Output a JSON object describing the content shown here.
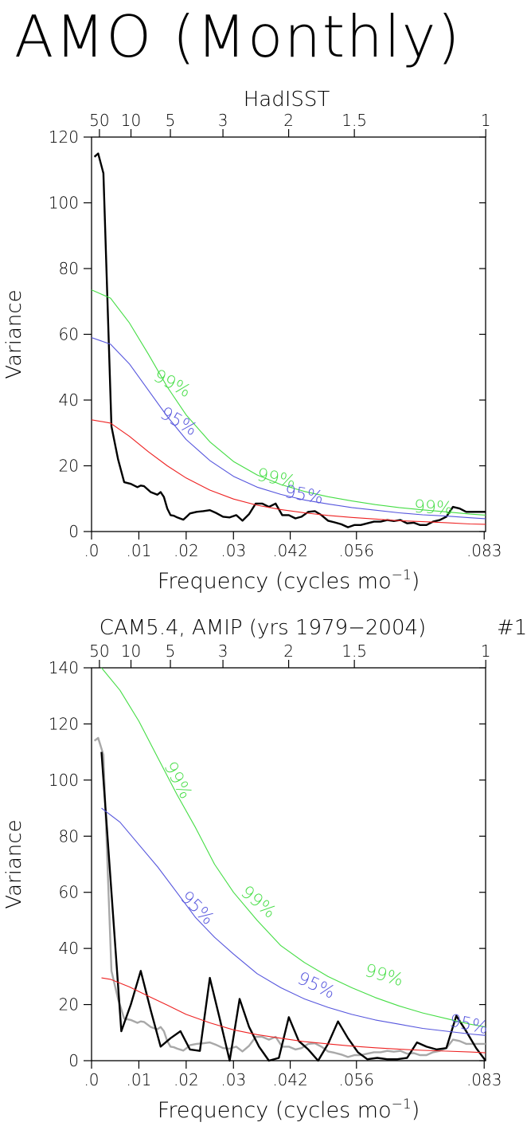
{
  "page": {
    "title": "AMO (Monthly)"
  },
  "colors": {
    "observed": "#000000",
    "observed_overlay": "#a8a8a8",
    "red_noise": "#ee2222",
    "conf_95": "#5555dd",
    "conf_99": "#44dd44",
    "axes": "#000000"
  },
  "chart_data": [
    {
      "type": "line",
      "title": "HadISST",
      "run_number": "",
      "xlabel": "Frequency (cycles mo",
      "xlabel_sup": "−1",
      "xlabel_close": ")",
      "ylabel": "Variance",
      "xlim": [
        0,
        0.0833
      ],
      "ylim": [
        0,
        120
      ],
      "x_ticks": [
        0,
        0.01,
        0.02,
        0.03,
        0.042,
        0.056,
        0.083
      ],
      "x_tick_labels": [
        ".0",
        ".01",
        ".02",
        ".03",
        ".042",
        ".056",
        ".083"
      ],
      "y_ticks": [
        0,
        20,
        40,
        60,
        80,
        100,
        120
      ],
      "y_tick_labels": [
        "0",
        "20",
        "40",
        "60",
        "80",
        "100",
        "120"
      ],
      "period_ticks": [
        50,
        10,
        5,
        3,
        2,
        1.5,
        1
      ],
      "period_tick_labels": [
        "50",
        "10",
        "5",
        "3",
        "2",
        "1.5",
        "1"
      ],
      "series": [
        {
          "role": "spectrum",
          "color": "#000000",
          "x": [
            0.0006,
            0.0014,
            0.0025,
            0.0042,
            0.0056,
            0.0069,
            0.0083,
            0.0097,
            0.0104,
            0.0111,
            0.0125,
            0.0139,
            0.0146,
            0.0153,
            0.016,
            0.0167,
            0.0174,
            0.0181,
            0.0194,
            0.0201,
            0.0208,
            0.0222,
            0.0236,
            0.025,
            0.0264,
            0.0278,
            0.0292,
            0.0306,
            0.0319,
            0.0333,
            0.0347,
            0.0361,
            0.0375,
            0.0389,
            0.0403,
            0.0417,
            0.0431,
            0.0444,
            0.0458,
            0.0472,
            0.0486,
            0.05,
            0.0514,
            0.0528,
            0.0542,
            0.0556,
            0.0569,
            0.0583,
            0.0597,
            0.0611,
            0.0625,
            0.0639,
            0.0653,
            0.0667,
            0.0681,
            0.0694,
            0.0708,
            0.0722,
            0.0736,
            0.075,
            0.0764,
            0.0778,
            0.0792,
            0.0806,
            0.0819,
            0.0833
          ],
          "y": [
            114,
            115,
            109,
            32,
            22,
            15,
            14.5,
            13.5,
            14,
            13.8,
            12,
            11.2,
            12,
            10.5,
            7,
            5,
            4.8,
            4.3,
            3.6,
            4.5,
            5.5,
            6,
            6.2,
            6.5,
            5.6,
            4.5,
            4.3,
            5,
            3.3,
            5.3,
            8.5,
            8.5,
            7.5,
            8.5,
            5,
            5,
            4,
            4.5,
            6,
            6.2,
            5,
            3.3,
            2.8,
            2.2,
            1.3,
            2,
            2,
            2.5,
            3,
            3,
            3.5,
            3.2,
            3.5,
            2.5,
            2.7,
            2,
            2,
            3,
            3.5,
            4.5,
            7.5,
            7,
            6,
            6,
            6,
            6
          ]
        },
        {
          "role": "red-noise",
          "color": "#ee2222",
          "x": [
            0,
            0.004,
            0.008,
            0.012,
            0.016,
            0.02,
            0.025,
            0.03,
            0.035,
            0.04,
            0.045,
            0.05,
            0.055,
            0.06,
            0.065,
            0.07,
            0.075,
            0.08,
            0.0833
          ],
          "y": [
            34,
            33,
            29,
            24.3,
            20,
            16.3,
            12.6,
            9.9,
            8,
            6.7,
            5.7,
            4.9,
            4.3,
            3.8,
            3.3,
            3,
            2.7,
            2.3,
            2.2
          ]
        },
        {
          "role": "95%",
          "label": "95%",
          "color": "#5555dd",
          "x": [
            0,
            0.004,
            0.008,
            0.012,
            0.016,
            0.02,
            0.025,
            0.03,
            0.035,
            0.04,
            0.045,
            0.05,
            0.055,
            0.06,
            0.065,
            0.07,
            0.075,
            0.08,
            0.0833
          ],
          "y": [
            59,
            57,
            51,
            43,
            35,
            28,
            21.6,
            16.8,
            13.5,
            11.3,
            9.6,
            8.4,
            7.3,
            6.5,
            5.7,
            5.1,
            4.7,
            4.2,
            3.9
          ]
        },
        {
          "role": "99%",
          "label": "99%",
          "color": "#44dd44",
          "x": [
            0,
            0.004,
            0.008,
            0.012,
            0.016,
            0.02,
            0.025,
            0.03,
            0.035,
            0.04,
            0.045,
            0.05,
            0.055,
            0.06,
            0.065,
            0.07,
            0.075,
            0.08,
            0.0833
          ],
          "y": [
            73.5,
            71,
            63.5,
            54,
            44,
            35.5,
            27.3,
            21.3,
            17.2,
            14.3,
            12.2,
            10.6,
            9.3,
            8.2,
            7.3,
            6.6,
            6,
            5.3,
            5
          ]
        }
      ],
      "annotations": [
        {
          "text": "99%",
          "color": "#44dd44",
          "x": 0.0165,
          "y": 43.5,
          "rotate": 28
        },
        {
          "text": "95%",
          "color": "#5555dd",
          "x": 0.0178,
          "y": 32,
          "rotate": 30
        },
        {
          "text": "99%",
          "color": "#44dd44",
          "x": 0.0388,
          "y": 14.5,
          "rotate": 12
        },
        {
          "text": "95%",
          "color": "#5555dd",
          "x": 0.0447,
          "y": 9.5,
          "rotate": 10
        },
        {
          "text": "99%",
          "color": "#44dd44",
          "x": 0.0722,
          "y": 5.6,
          "rotate": 3
        }
      ]
    },
    {
      "type": "line",
      "title": "CAM5.4, AMIP (yrs 1979−2004)",
      "run_number": "#1",
      "xlabel": "Frequency (cycles mo",
      "xlabel_sup": "−1",
      "xlabel_close": ")",
      "ylabel": "Variance",
      "xlim": [
        0,
        0.0833
      ],
      "ylim": [
        0,
        140
      ],
      "x_ticks": [
        0,
        0.01,
        0.02,
        0.03,
        0.042,
        0.056,
        0.083
      ],
      "x_tick_labels": [
        ".0",
        ".01",
        ".02",
        ".03",
        ".042",
        ".056",
        ".083"
      ],
      "y_ticks": [
        0,
        20,
        40,
        60,
        80,
        100,
        120,
        140
      ],
      "y_tick_labels": [
        "0",
        "20",
        "40",
        "60",
        "80",
        "100",
        "120",
        "140"
      ],
      "period_ticks": [
        50,
        10,
        5,
        3,
        2,
        1.5,
        1
      ],
      "period_tick_labels": [
        "50",
        "10",
        "5",
        "3",
        "2",
        "1.5",
        "1"
      ],
      "series": [
        {
          "role": "observed-overlay",
          "color": "#a8a8a8",
          "x": [
            0.0006,
            0.0014,
            0.0025,
            0.0042,
            0.0056,
            0.0069,
            0.0083,
            0.0097,
            0.0104,
            0.0111,
            0.0125,
            0.0139,
            0.0146,
            0.0153,
            0.016,
            0.0167,
            0.0174,
            0.0181,
            0.0194,
            0.0201,
            0.0208,
            0.0222,
            0.0236,
            0.025,
            0.0264,
            0.0278,
            0.0292,
            0.0306,
            0.0319,
            0.0333,
            0.0347,
            0.0361,
            0.0375,
            0.0389,
            0.0403,
            0.0417,
            0.0431,
            0.0444,
            0.0458,
            0.0472,
            0.0486,
            0.05,
            0.0514,
            0.0528,
            0.0542,
            0.0556,
            0.0569,
            0.0583,
            0.0597,
            0.0611,
            0.0625,
            0.0639,
            0.0653,
            0.0667,
            0.0681,
            0.0694,
            0.0708,
            0.0722,
            0.0736,
            0.075,
            0.0764,
            0.0778,
            0.0792,
            0.0806,
            0.0819,
            0.0833
          ],
          "y": [
            114,
            115,
            109,
            32,
            22,
            15,
            14.5,
            13.5,
            14,
            13.8,
            12,
            11.2,
            12,
            10.5,
            7,
            5,
            4.8,
            4.3,
            3.6,
            4.5,
            5.5,
            6,
            6.2,
            6.5,
            5.6,
            4.5,
            4.3,
            5,
            3.3,
            5.3,
            8.5,
            8.5,
            7.5,
            8.5,
            5,
            5,
            4,
            4.5,
            6,
            6.2,
            5,
            3.3,
            2.8,
            2.2,
            1.3,
            2,
            2,
            2.5,
            3,
            3,
            3.5,
            3.2,
            3.5,
            2.5,
            2.7,
            2,
            2,
            3,
            3.5,
            4.5,
            7.5,
            7,
            6,
            6,
            6,
            6
          ]
        },
        {
          "role": "spectrum",
          "color": "#000000",
          "x": [
            0.0021,
            0.0042,
            0.0063,
            0.0083,
            0.0104,
            0.0125,
            0.0146,
            0.0167,
            0.0188,
            0.0208,
            0.0229,
            0.025,
            0.0271,
            0.0292,
            0.0313,
            0.0333,
            0.0354,
            0.0375,
            0.0396,
            0.0417,
            0.0438,
            0.0458,
            0.0479,
            0.05,
            0.0521,
            0.0542,
            0.0563,
            0.0583,
            0.0604,
            0.0625,
            0.0646,
            0.0667,
            0.0688,
            0.0708,
            0.0729,
            0.075,
            0.0771,
            0.0792,
            0.0813,
            0.0833
          ],
          "y": [
            110,
            60,
            10.5,
            20,
            32,
            18,
            5,
            8,
            10.5,
            4,
            3.5,
            29.5,
            15,
            0,
            22,
            12,
            5,
            0,
            1,
            15.5,
            7,
            4,
            0,
            6,
            14,
            8,
            3,
            0.5,
            1,
            0.5,
            0.5,
            1,
            6.5,
            5,
            4,
            4.5,
            16,
            10.5,
            4.5,
            0
          ]
        },
        {
          "role": "red-noise",
          "color": "#ee2222",
          "x": [
            0.0021,
            0.004,
            0.008,
            0.012,
            0.016,
            0.02,
            0.025,
            0.03,
            0.035,
            0.04,
            0.045,
            0.05,
            0.055,
            0.06,
            0.065,
            0.07,
            0.075,
            0.08,
            0.0833
          ],
          "y": [
            29.5,
            29,
            26.3,
            23,
            19.8,
            16.5,
            13.5,
            11,
            9.3,
            8,
            6.8,
            6,
            5.2,
            4.6,
            4.1,
            3.7,
            3.4,
            3.1,
            2.8
          ]
        },
        {
          "role": "95%",
          "label": "95%",
          "color": "#5555dd",
          "x": [
            0.0021,
            0.006,
            0.01,
            0.014,
            0.018,
            0.022,
            0.026,
            0.03,
            0.035,
            0.04,
            0.045,
            0.05,
            0.055,
            0.06,
            0.065,
            0.07,
            0.075,
            0.08,
            0.0833
          ],
          "y": [
            90,
            85,
            77,
            69,
            60,
            51,
            44,
            38,
            31,
            26,
            22,
            19,
            16.5,
            14.5,
            13,
            11.5,
            10.5,
            9.5,
            9
          ]
        },
        {
          "role": "99%",
          "label": "99%",
          "color": "#44dd44",
          "x": [
            0.0021,
            0.006,
            0.01,
            0.014,
            0.018,
            0.022,
            0.026,
            0.03,
            0.035,
            0.04,
            0.045,
            0.05,
            0.055,
            0.06,
            0.065,
            0.07,
            0.075,
            0.08,
            0.0833
          ],
          "y": [
            140,
            132,
            121,
            108,
            95,
            83,
            70,
            60,
            50,
            41,
            35,
            30,
            26,
            22.5,
            19.5,
            17,
            15,
            13,
            12
          ]
        }
      ],
      "annotations": [
        {
          "text": "99%",
          "color": "#44dd44",
          "x": 0.0172,
          "y": 99,
          "rotate": 62
        },
        {
          "text": "95%",
          "color": "#5555dd",
          "x": 0.0215,
          "y": 53,
          "rotate": 45
        },
        {
          "text": "99%",
          "color": "#44dd44",
          "x": 0.0345,
          "y": 55,
          "rotate": 40
        },
        {
          "text": "95%",
          "color": "#5555dd",
          "x": 0.047,
          "y": 25,
          "rotate": 25
        },
        {
          "text": "99%",
          "color": "#44dd44",
          "x": 0.0615,
          "y": 28.5,
          "rotate": 16
        },
        {
          "text": "95%",
          "color": "#5555dd",
          "x": 0.0795,
          "y": 11,
          "rotate": 12
        }
      ]
    }
  ]
}
